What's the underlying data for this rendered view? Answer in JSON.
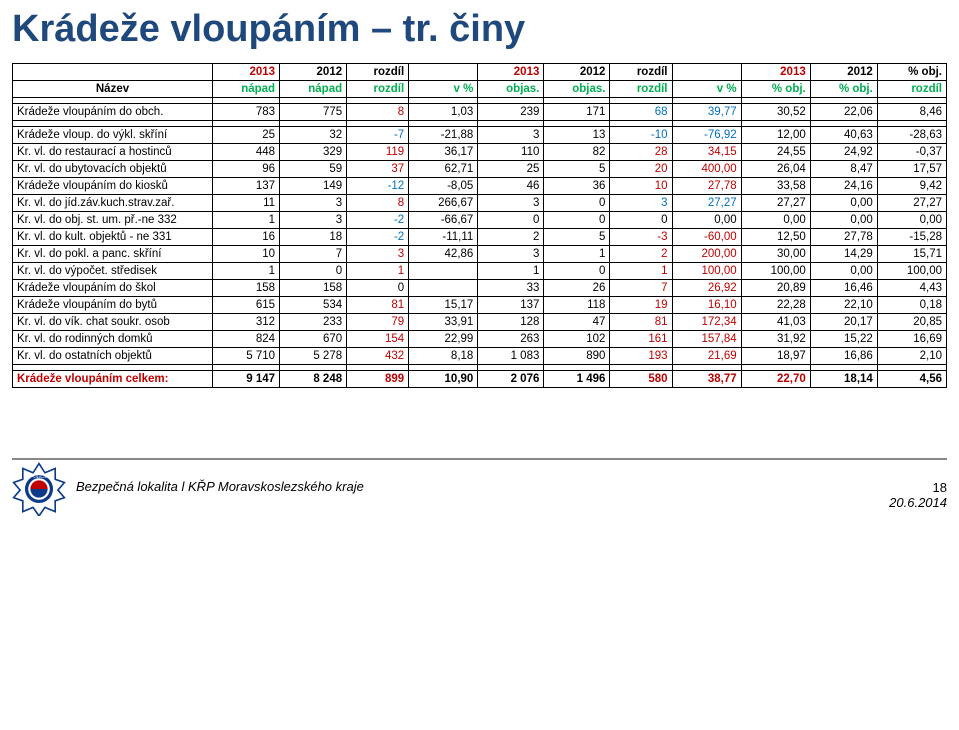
{
  "title": "Krádeže vloupáním – tr. činy",
  "header1": [
    "2013",
    "2012",
    "rozdíl",
    "2013",
    "2012",
    "rozdíl",
    "2013",
    "2012",
    "% obj."
  ],
  "header2": [
    "Název",
    "nápad",
    "nápad",
    "rozdíl",
    "v %",
    "objas.",
    "objas.",
    "rozdíl",
    "v %",
    "% obj.",
    "% obj.",
    "rozdíl"
  ],
  "rows": [
    {
      "n": "Krádeže vloupáním do obch.",
      "c": [
        "783",
        "775",
        "8",
        "1,03",
        "239",
        "171",
        "68",
        "39,77",
        "30,52",
        "22,06",
        "8,46"
      ],
      "d": [
        1,
        0,
        0
      ],
      "break": true
    },
    {
      "n": "Krádeže vloup. do výkl. skříní",
      "c": [
        "25",
        "32",
        "-7",
        "-21,88",
        "3",
        "13",
        "-10",
        "-76,92",
        "12,00",
        "40,63",
        "-28,63"
      ],
      "d": [
        0,
        0,
        1
      ]
    },
    {
      "n": "Kr. vl. do restaurací a hostinců",
      "c": [
        "448",
        "329",
        "119",
        "36,17",
        "110",
        "82",
        "28",
        "34,15",
        "24,55",
        "24,92",
        "-0,37"
      ],
      "d": [
        1,
        1,
        0
      ]
    },
    {
      "n": "Kr. vl. do ubytovacích objektů",
      "c": [
        "96",
        "59",
        "37",
        "62,71",
        "25",
        "5",
        "20",
        "400,00",
        "26,04",
        "8,47",
        "17,57"
      ],
      "d": [
        1,
        1,
        0
      ]
    },
    {
      "n": "Krádeže vloupáním do kiosků",
      "c": [
        "137",
        "149",
        "-12",
        "-8,05",
        "46",
        "36",
        "10",
        "27,78",
        "33,58",
        "24,16",
        "9,42"
      ],
      "d": [
        0,
        1,
        0
      ]
    },
    {
      "n": "Kr. vl. do jíd.záv.kuch.strav.zař.",
      "c": [
        "11",
        "3",
        "8",
        "266,67",
        "3",
        "0",
        "3",
        "27,27",
        "27,27",
        "0,00",
        "27,27"
      ],
      "d": [
        1,
        0,
        0
      ]
    },
    {
      "n": "Kr. vl. do obj. st. um. př.-ne 332",
      "c": [
        "1",
        "3",
        "-2",
        "-66,67",
        "0",
        "0",
        "0",
        "0,00",
        "0,00",
        "0,00",
        "0,00"
      ],
      "d": [
        0,
        0,
        0
      ]
    },
    {
      "n": "Kr. vl. do kult. objektů - ne 331",
      "c": [
        "16",
        "18",
        "-2",
        "-11,11",
        "2",
        "5",
        "-3",
        "-60,00",
        "12,50",
        "27,78",
        "-15,28"
      ],
      "d": [
        0,
        1,
        0
      ]
    },
    {
      "n": "Kr. vl. do pokl. a panc. skříní",
      "c": [
        "10",
        "7",
        "3",
        "42,86",
        "3",
        "1",
        "2",
        "200,00",
        "30,00",
        "14,29",
        "15,71"
      ],
      "d": [
        1,
        1,
        0
      ]
    },
    {
      "n": "Kr. vl. do výpočet. středisek",
      "c": [
        "1",
        "0",
        "1",
        "",
        "1",
        "0",
        "1",
        "100,00",
        "100,00",
        "0,00",
        "100,00"
      ],
      "d": [
        1,
        1,
        0
      ]
    },
    {
      "n": "Krádeže vloupáním do škol",
      "c": [
        "158",
        "158",
        "0",
        "",
        "33",
        "26",
        "7",
        "26,92",
        "20,89",
        "16,46",
        "4,43"
      ],
      "d": [
        0,
        1,
        0
      ]
    },
    {
      "n": "Krádeže vloupáním do bytů",
      "c": [
        "615",
        "534",
        "81",
        "15,17",
        "137",
        "118",
        "19",
        "16,10",
        "22,28",
        "22,10",
        "0,18"
      ],
      "d": [
        1,
        1,
        0
      ]
    },
    {
      "n": "Kr. vl. do vík. chat soukr. osob",
      "c": [
        "312",
        "233",
        "79",
        "33,91",
        "128",
        "47",
        "81",
        "172,34",
        "41,03",
        "20,17",
        "20,85"
      ],
      "d": [
        1,
        1,
        0
      ]
    },
    {
      "n": "Kr. vl. do rodinných domků",
      "c": [
        "824",
        "670",
        "154",
        "22,99",
        "263",
        "102",
        "161",
        "157,84",
        "31,92",
        "15,22",
        "16,69"
      ],
      "d": [
        1,
        1,
        0
      ]
    },
    {
      "n": "Kr. vl. do ostatních objektů",
      "c": [
        "5 710",
        "5 278",
        "432",
        "8,18",
        "1 083",
        "890",
        "193",
        "21,69",
        "18,97",
        "16,86",
        "2,10"
      ],
      "d": [
        1,
        1,
        0
      ],
      "break": true
    }
  ],
  "total": {
    "n": "Krádeže vloupáním celkem:",
    "c": [
      "9 147",
      "8 248",
      "899",
      "10,90",
      "2 076",
      "1 496",
      "580",
      "38,77",
      "22,70",
      "18,14",
      "4,56"
    ]
  },
  "footer_text": "Bezpečná lokalita l KŘP Moravskoslezského kraje",
  "footer_date": "20.6.2014",
  "page_no": "18",
  "colors": {
    "pos": "#c00000",
    "neg": "#0070c0",
    "green": "#00b050",
    "title": "#1f497d"
  }
}
